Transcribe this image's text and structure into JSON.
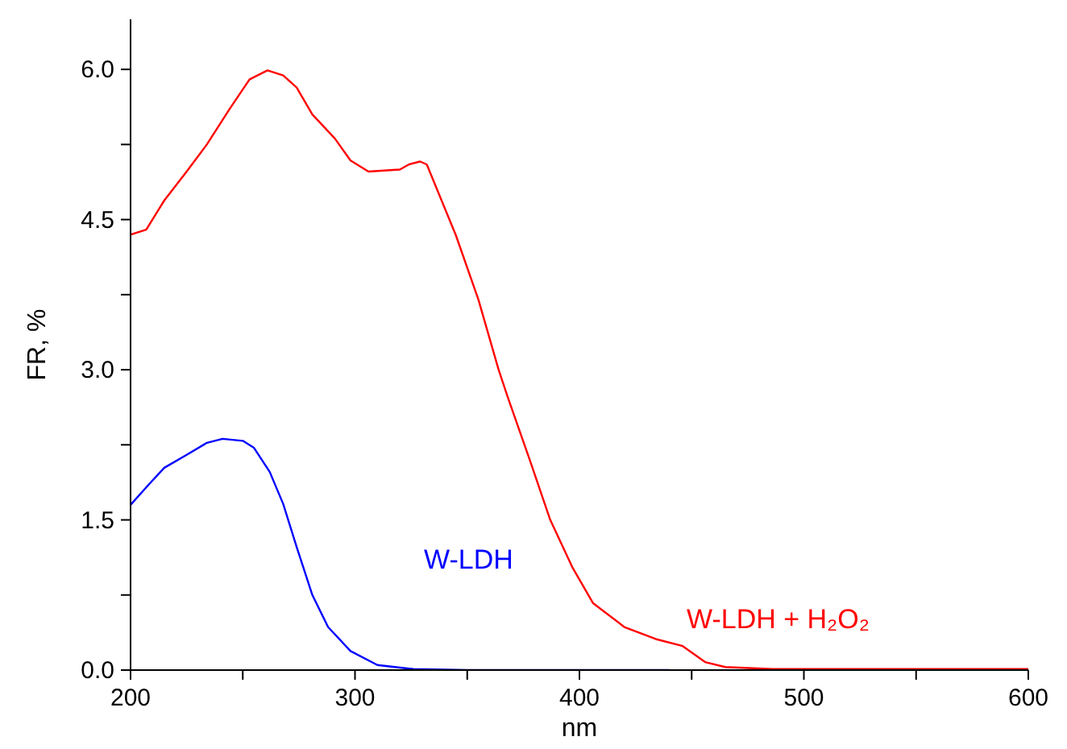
{
  "chart_data": {
    "type": "line",
    "xlabel": "nm",
    "ylabel": "FR, %",
    "xlim": [
      200,
      600
    ],
    "ylim": [
      0,
      6.5
    ],
    "xticks": [
      200,
      {
        "value": 250,
        "label": null
      },
      300,
      {
        "value": 350,
        "label": null
      },
      400,
      {
        "value": 450,
        "label": null
      },
      500,
      {
        "value": 550,
        "label": null
      },
      600
    ],
    "yticks": [
      {
        "value": 0,
        "label": "0.0"
      },
      {
        "value": 0.75,
        "label": null
      },
      1.5,
      {
        "value": 2.25,
        "label": null
      },
      {
        "value": 3,
        "label": "3.0"
      },
      {
        "value": 3.75,
        "label": null
      },
      4.5,
      {
        "value": 5.25,
        "label": null
      },
      {
        "value": 6,
        "label": "6.0"
      }
    ],
    "grid": false,
    "legend": false,
    "marker": "none",
    "line_style": "solid",
    "series": [
      {
        "name": "W-LDH",
        "color": "#0000ff",
        "x": [
          200,
          208,
          215,
          225,
          234,
          241,
          250,
          255,
          262,
          268,
          274,
          281,
          288,
          298,
          310,
          326,
          350,
          400,
          440
        ],
        "values": [
          1.65,
          1.85,
          2.02,
          2.15,
          2.27,
          2.31,
          2.29,
          2.22,
          1.98,
          1.66,
          1.23,
          0.75,
          0.43,
          0.19,
          0.05,
          0.01,
          0,
          0,
          0
        ]
      },
      {
        "name": "W-LDH + H₂O₂",
        "color": "#ff0000",
        "x": [
          200,
          207,
          215,
          225,
          234,
          244,
          253,
          261,
          268,
          274,
          281,
          291,
          298,
          306,
          320,
          324,
          329,
          332,
          345,
          355,
          364,
          368,
          378,
          387,
          397,
          406,
          420,
          434,
          446,
          456,
          465,
          486,
          550,
          600
        ],
        "values": [
          4.35,
          4.4,
          4.69,
          4.98,
          5.25,
          5.6,
          5.9,
          5.99,
          5.94,
          5.82,
          5.55,
          5.31,
          5.09,
          4.98,
          5.0,
          5.05,
          5.08,
          5.05,
          4.34,
          3.7,
          3.0,
          2.73,
          2.09,
          1.5,
          1.02,
          0.67,
          0.43,
          0.31,
          0.24,
          0.08,
          0.03,
          0.01,
          0.01,
          0.01
        ]
      }
    ]
  }
}
